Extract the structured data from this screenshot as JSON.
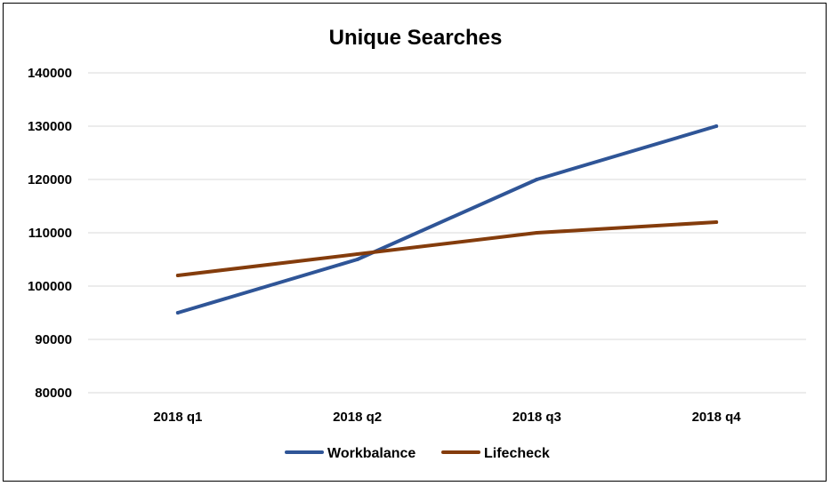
{
  "chart_data": {
    "type": "line",
    "title": "Unique Searches",
    "xlabel": "",
    "ylabel": "",
    "categories": [
      "2018 q1",
      "2018 q2",
      "2018 q3",
      "2018 q4"
    ],
    "yticks": [
      "80000",
      "90000",
      "100000",
      "110000",
      "120000",
      "130000",
      "140000"
    ],
    "ylim": [
      80000,
      140000
    ],
    "grid": true,
    "legend_position": "bottom",
    "series": [
      {
        "name": "Workbalance",
        "color": "#2f5597",
        "values": [
          95000,
          105000,
          120000,
          130000
        ]
      },
      {
        "name": "Lifecheck",
        "color": "#843c0c",
        "values": [
          102000,
          106000,
          110000,
          112000
        ]
      }
    ]
  }
}
